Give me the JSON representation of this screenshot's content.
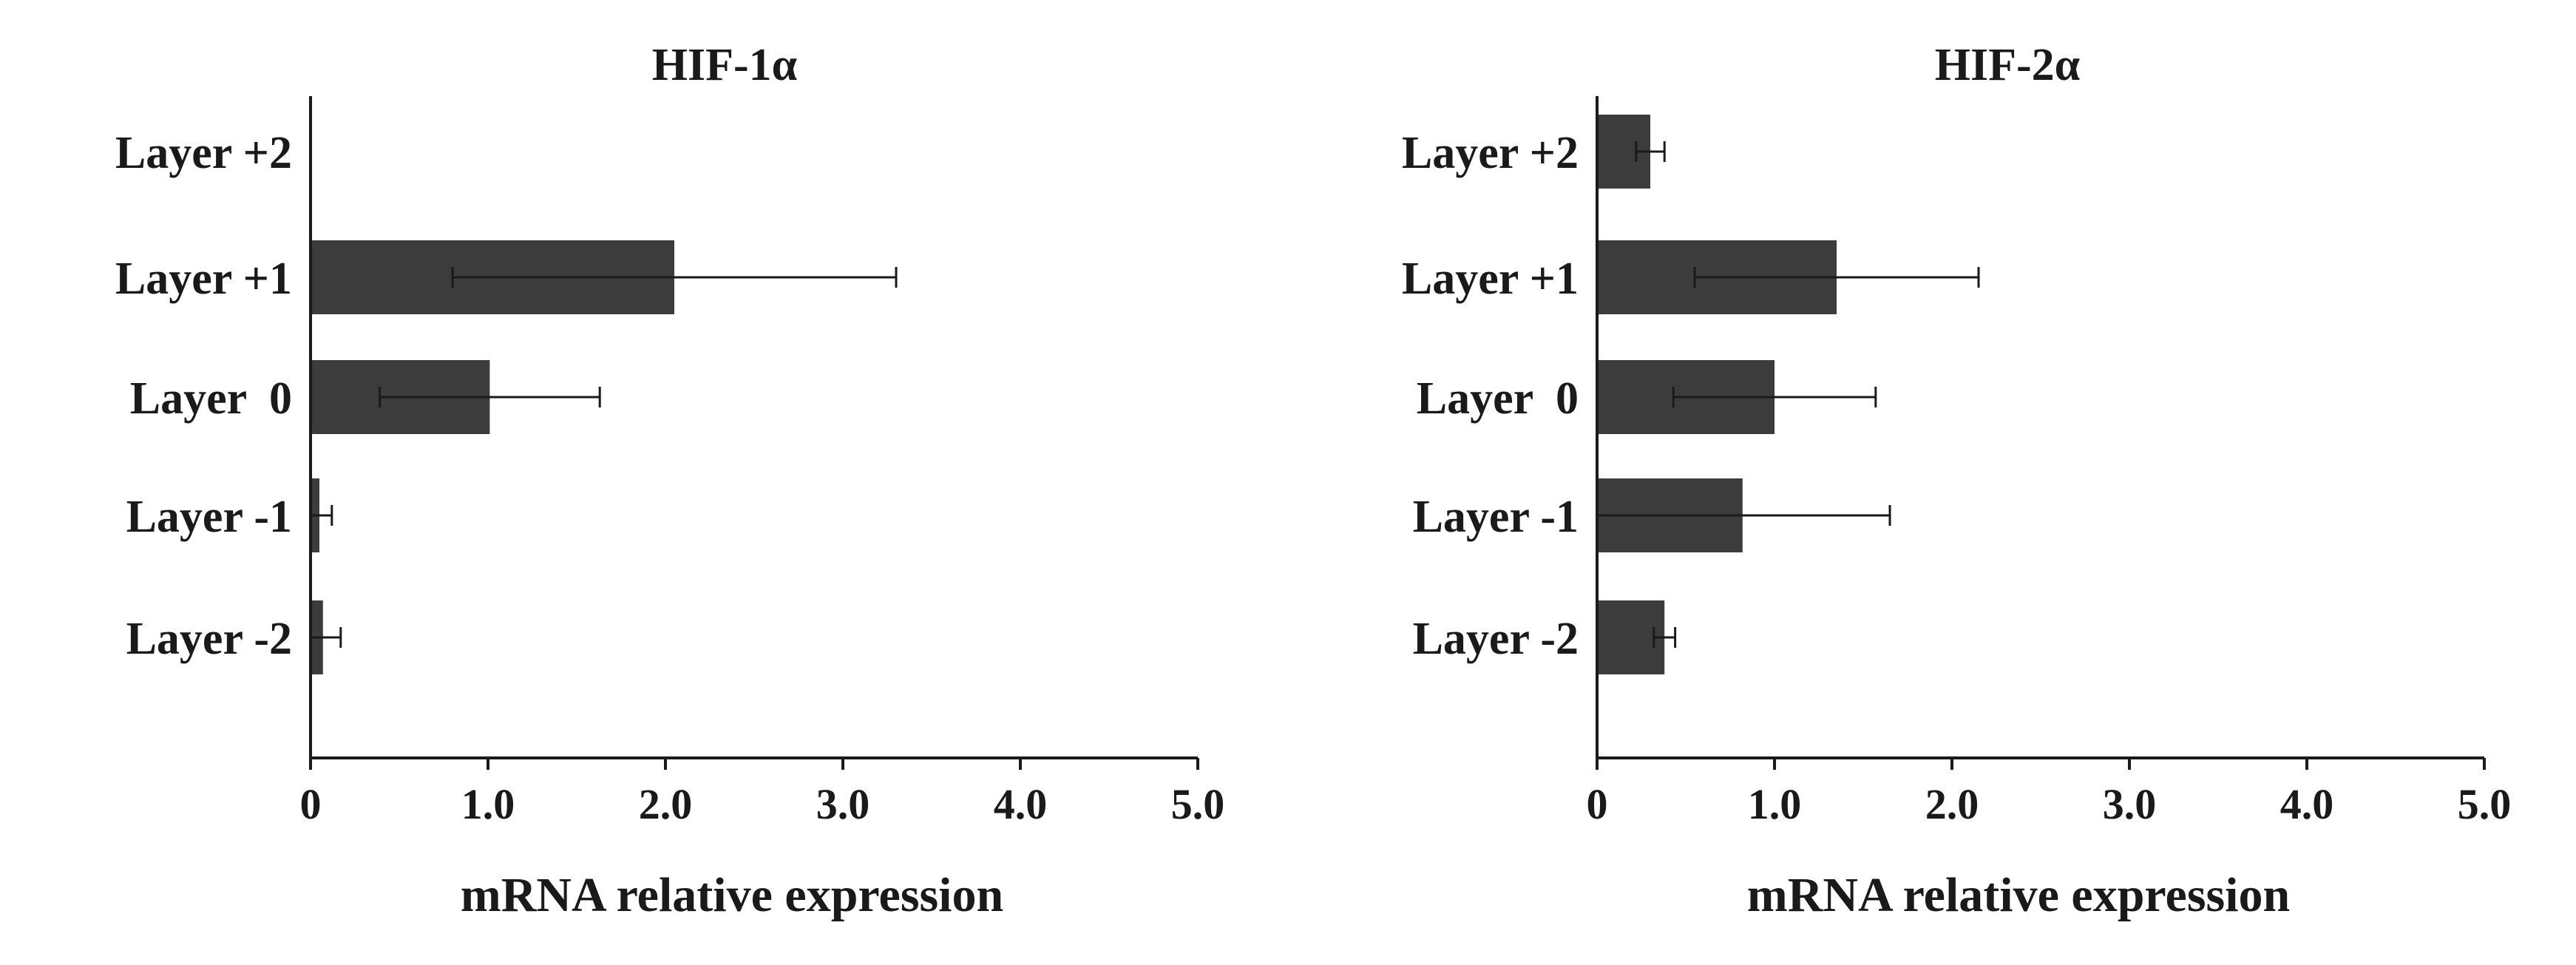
{
  "chart_data": [
    {
      "type": "bar",
      "orientation": "horizontal",
      "title": "HIF-1α",
      "xlabel": "mRNA relative expression",
      "xlim": [
        0,
        5.0
      ],
      "xticks": [
        "0",
        "1.0",
        "2.0",
        "3.0",
        "4.0",
        "5.0"
      ],
      "categories": [
        "Layer +2",
        "Layer +1",
        "Layer  0",
        "Layer -1",
        "Layer -2"
      ],
      "values": [
        0,
        2.05,
        1.01,
        0.05,
        0.07
      ],
      "error": [
        0,
        1.25,
        0.62,
        0.07,
        0.1
      ],
      "bar_color": "#3c3c3c",
      "grid": false,
      "legend": "none"
    },
    {
      "type": "bar",
      "orientation": "horizontal",
      "title": "HIF-2α",
      "xlabel": "mRNA relative expression",
      "xlim": [
        0,
        5.0
      ],
      "xticks": [
        "0",
        "1.0",
        "2.0",
        "3.0",
        "4.0",
        "5.0"
      ],
      "categories": [
        "Layer +2",
        "Layer +1",
        "Layer  0",
        "Layer -1",
        "Layer -2"
      ],
      "values": [
        0.3,
        1.35,
        1.0,
        0.82,
        0.38
      ],
      "error": [
        0.08,
        0.8,
        0.57,
        0.83,
        0.06
      ],
      "bar_color": "#3c3c3c",
      "grid": false,
      "legend": "none"
    }
  ]
}
